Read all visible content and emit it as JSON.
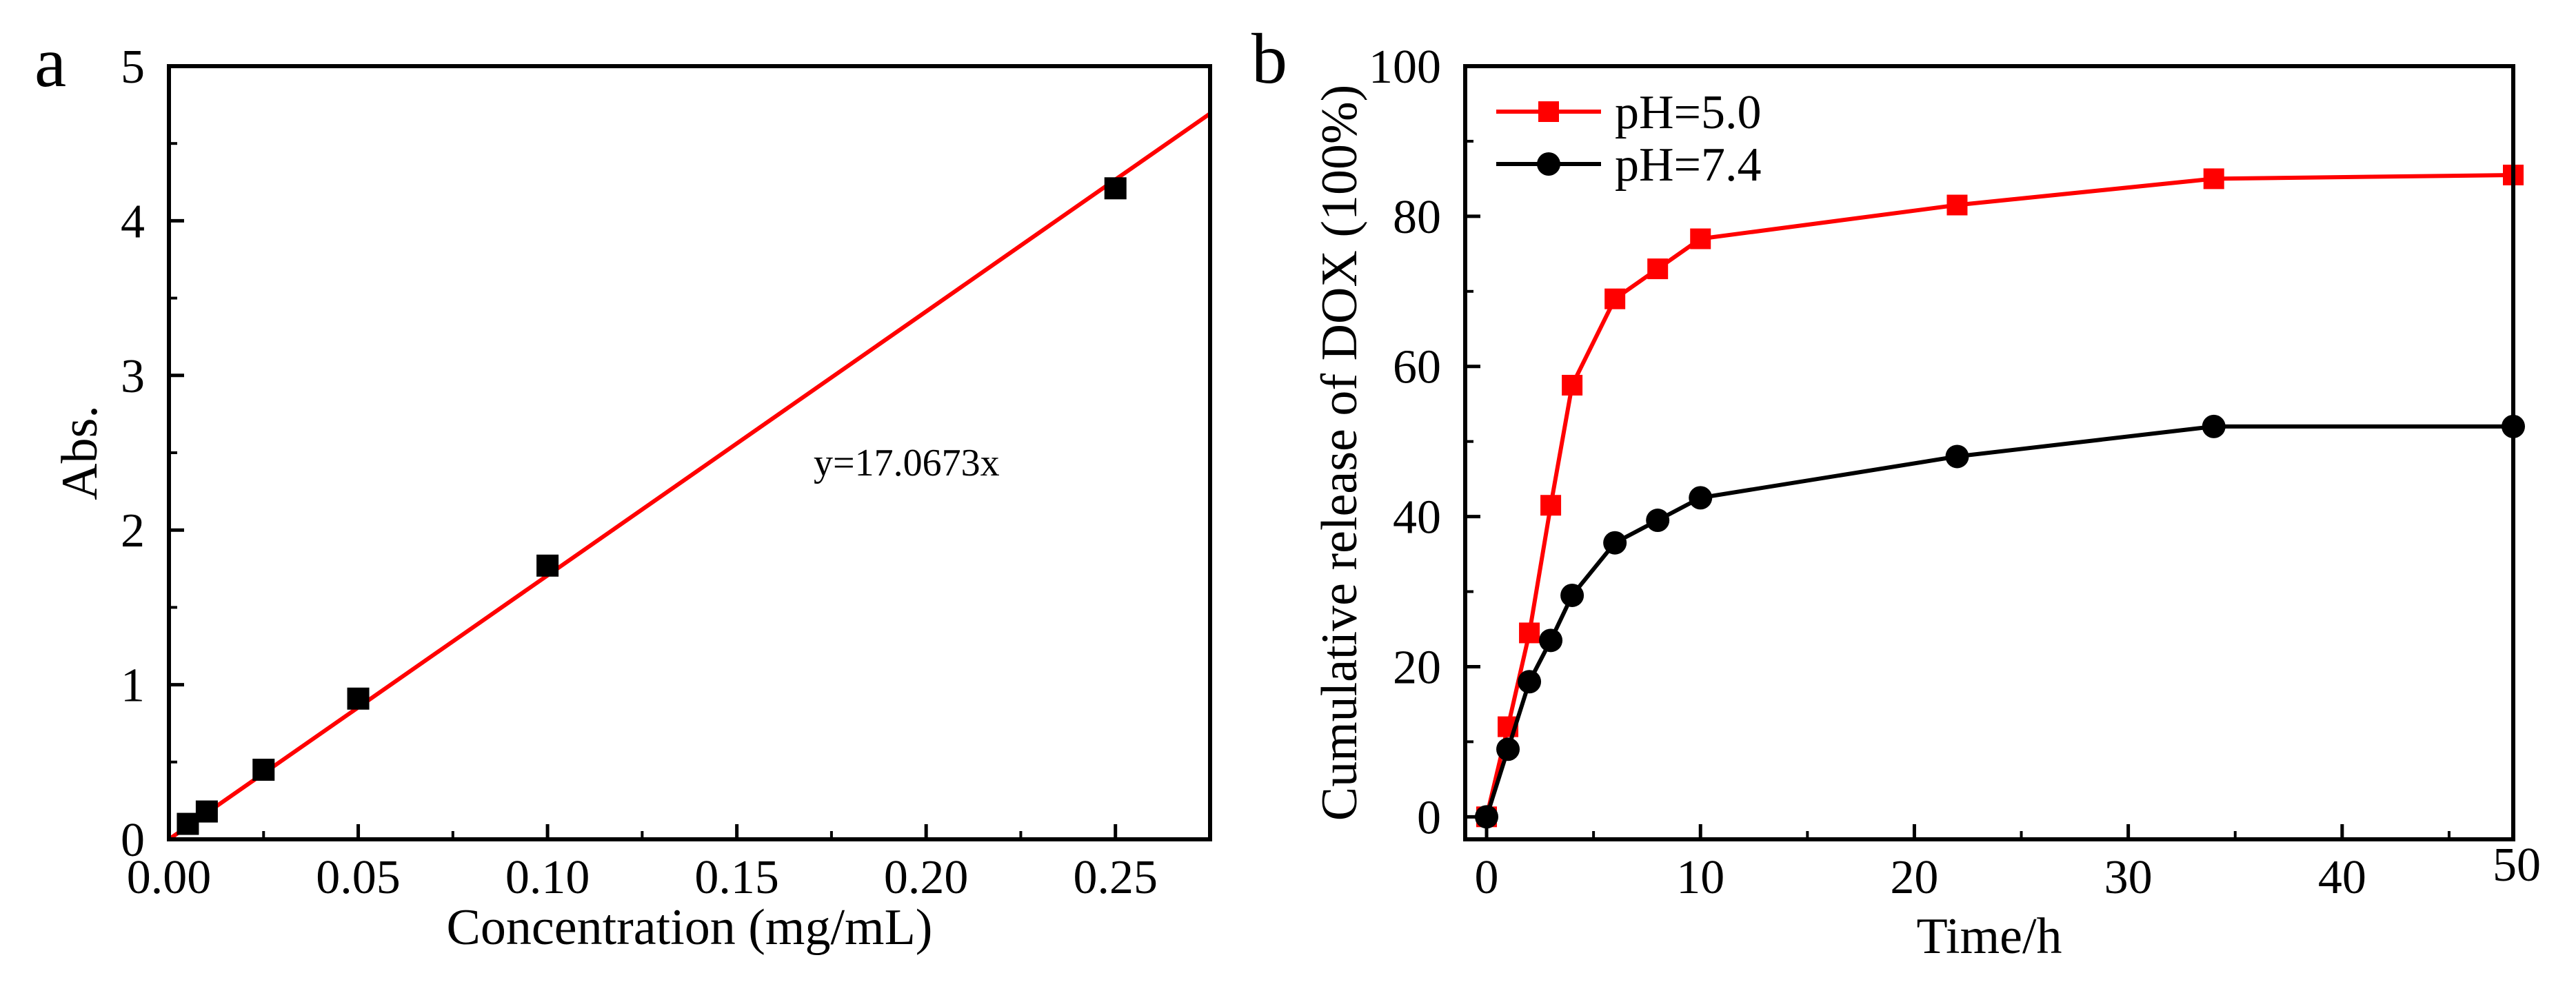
{
  "figure": {
    "panels": [
      "a",
      "b"
    ]
  },
  "chart_data": [
    {
      "type": "scatter",
      "panel_label": "a",
      "title": "",
      "xlabel": "Concentration (mg/mL)",
      "ylabel": "Abs.",
      "xlim": [
        0,
        0.275
      ],
      "ylim": [
        0,
        5
      ],
      "xticks": [
        "0.00",
        "0.05",
        "0.10",
        "0.15",
        "0.20",
        "0.25"
      ],
      "xtick_values": [
        0,
        0.05,
        0.1,
        0.15,
        0.2,
        0.25
      ],
      "yticks": [
        "0",
        "1",
        "2",
        "3",
        "4",
        "5"
      ],
      "ytick_values": [
        0,
        1,
        2,
        3,
        4,
        5
      ],
      "grid": false,
      "points": {
        "x": [
          0.005,
          0.01,
          0.025,
          0.05,
          0.1,
          0.25
        ],
        "y": [
          0.1,
          0.18,
          0.45,
          0.91,
          1.77,
          4.21
        ]
      },
      "fit": {
        "slope": 17.0673,
        "intercept": 0,
        "x_range": [
          0,
          0.275
        ],
        "color": "#ff0000"
      },
      "annotation": "y=17.0673x",
      "marker_color": "#000000"
    },
    {
      "type": "line",
      "panel_label": "b",
      "title": "",
      "xlabel": "Time/h",
      "ylabel": "Cumulative release of DOX (100%)",
      "xlim": [
        -1,
        48
      ],
      "ylim": [
        -3,
        100
      ],
      "xticks": [
        "0",
        "10",
        "20",
        "30",
        "40",
        "50"
      ],
      "xtick_values": [
        0,
        10,
        20,
        30,
        40,
        50
      ],
      "yticks": [
        "0",
        "20",
        "40",
        "60",
        "80",
        "100"
      ],
      "ytick_values": [
        0,
        20,
        40,
        60,
        80,
        100
      ],
      "grid": false,
      "legend_position": "top-left",
      "series": [
        {
          "name": "pH=5.0",
          "marker": "square",
          "color": "#ff0000",
          "x": [
            0,
            1,
            2,
            3,
            4,
            6,
            8,
            10,
            22,
            34,
            48
          ],
          "y": [
            0,
            12,
            24.5,
            41.5,
            57.5,
            69,
            73,
            77,
            81.5,
            85,
            85.5
          ]
        },
        {
          "name": "pH=7.4",
          "marker": "circle",
          "color": "#000000",
          "x": [
            0,
            1,
            2,
            3,
            4,
            6,
            8,
            10,
            22,
            34,
            48
          ],
          "y": [
            0,
            9,
            18,
            23.5,
            29.5,
            36.5,
            39.5,
            42.5,
            48,
            52,
            52
          ]
        }
      ]
    }
  ]
}
